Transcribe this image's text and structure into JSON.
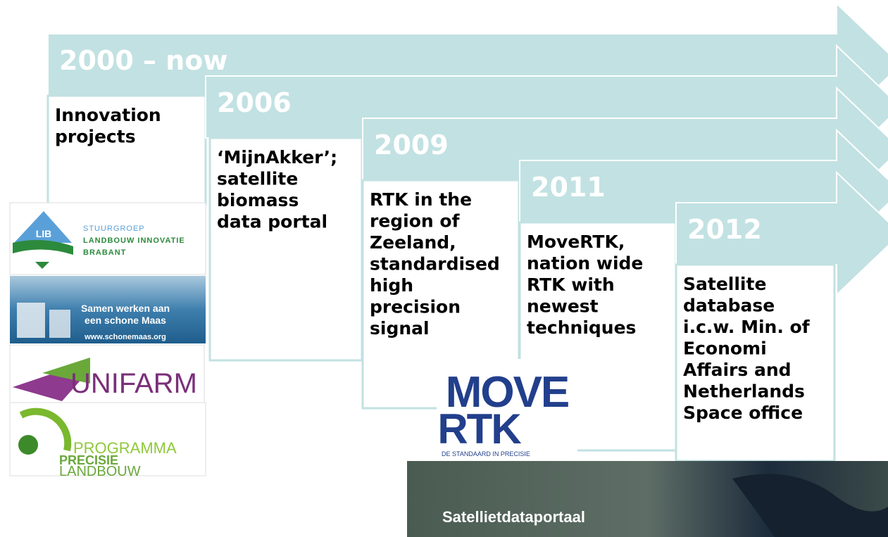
{
  "stages": [
    {
      "year": "2000 – now",
      "description": [
        "Innovation",
        "projects"
      ]
    },
    {
      "year": "2006",
      "description": [
        "‘MijnAkker’;",
        "satellite",
        "biomass",
        "data portal"
      ]
    },
    {
      "year": "2009",
      "description": [
        "RTK in the",
        "region of",
        "Zeeland,",
        "standardised",
        "high",
        "precision",
        "signal"
      ]
    },
    {
      "year": "2011",
      "description": [
        "MoveRTK,",
        "nation wide",
        "RTK with",
        "newest",
        "techniques"
      ]
    },
    {
      "year": "2012",
      "description": [
        "Satellite",
        "database",
        "i.c.w. Min. of",
        "Economi",
        "Affairs and",
        "Netherlands",
        "Space office"
      ]
    }
  ],
  "logos": {
    "lib": {
      "mark": "LIB",
      "lines": [
        "STUURGROEP",
        "LANDBOUW INNOVATIE",
        "BRABANT"
      ]
    },
    "schone_maas": {
      "lines": [
        "Samen werken aan",
        "een schone Maas"
      ],
      "url": "www.schonemaas.org"
    },
    "unifarm": {
      "name": "UNIFARM"
    },
    "ppl": {
      "lines": [
        "PROGRAMMA",
        "PRECISIE",
        "LANDBOUW"
      ]
    },
    "movertk": {
      "lines": [
        "MOVE",
        "RTK"
      ],
      "tagline": "DE STANDAARD IN PRECISIE"
    },
    "satellite": {
      "title": "Satellietdataportaal"
    }
  }
}
